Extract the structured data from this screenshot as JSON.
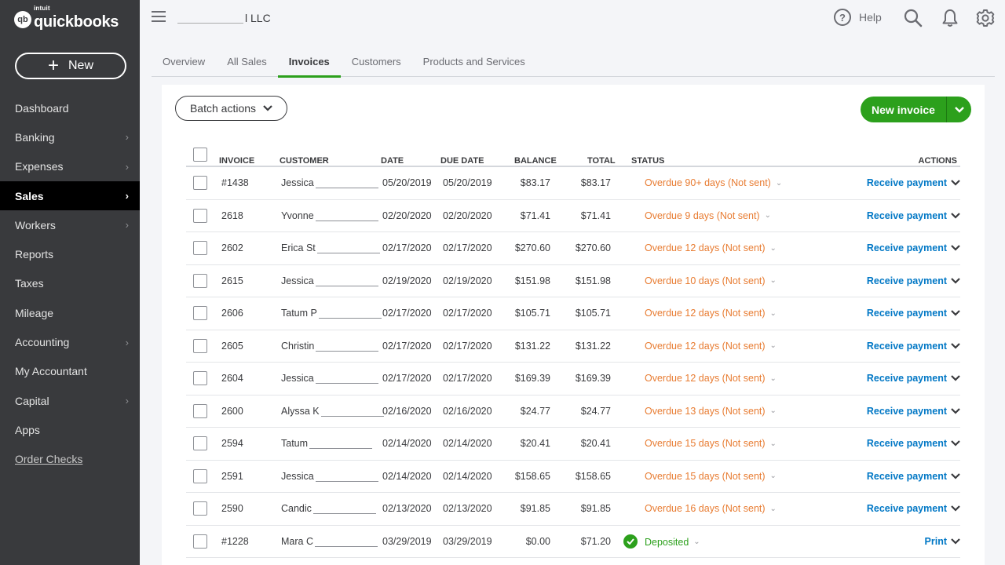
{
  "brand": {
    "intuit": "intuit",
    "name": "quickbooks",
    "mark": "qb"
  },
  "sidebar": {
    "new_label": "New",
    "items": [
      {
        "label": "Dashboard",
        "chevron": false
      },
      {
        "label": "Banking",
        "chevron": true
      },
      {
        "label": "Expenses",
        "chevron": true
      },
      {
        "label": "Sales",
        "chevron": true,
        "active": true
      },
      {
        "label": "Workers",
        "chevron": true
      },
      {
        "label": "Reports",
        "chevron": false
      },
      {
        "label": "Taxes",
        "chevron": false
      },
      {
        "label": "Mileage",
        "chevron": false
      },
      {
        "label": "Accounting",
        "chevron": true
      },
      {
        "label": "My Accountant",
        "chevron": false
      },
      {
        "label": "Capital",
        "chevron": true
      },
      {
        "label": "Apps",
        "chevron": false
      },
      {
        "label": "Order Checks",
        "chevron": false,
        "link": true
      }
    ]
  },
  "header": {
    "company_suffix": "l LLC",
    "help_label": "Help"
  },
  "tabs": [
    "Overview",
    "All Sales",
    "Invoices",
    "Customers",
    "Products and Services"
  ],
  "active_tab": "Invoices",
  "toolbar": {
    "batch_label": "Batch actions",
    "new_invoice_label": "New invoice"
  },
  "columns": {
    "invoice": "INVOICE",
    "customer": "CUSTOMER",
    "date": "DATE",
    "due_date": "DUE DATE",
    "balance": "BALANCE",
    "total": "TOTAL",
    "status": "STATUS",
    "actions": "ACTIONS"
  },
  "rows": [
    {
      "invoice": "#1438",
      "customer": "Jessica",
      "date": "05/20/2019",
      "due": "05/20/2019",
      "balance": "$83.17",
      "total": "$83.17",
      "status": "Overdue 90+ days (Not sent)",
      "action": "Receive payment",
      "deposited": false
    },
    {
      "invoice": "2618",
      "customer": "Yvonne",
      "date": "02/20/2020",
      "due": "02/20/2020",
      "balance": "$71.41",
      "total": "$71.41",
      "status": "Overdue 9 days (Not sent)",
      "action": "Receive payment",
      "deposited": false
    },
    {
      "invoice": "2602",
      "customer": "Erica St",
      "date": "02/17/2020",
      "due": "02/17/2020",
      "balance": "$270.60",
      "total": "$270.60",
      "status": "Overdue 12 days (Not sent)",
      "action": "Receive payment",
      "deposited": false
    },
    {
      "invoice": "2615",
      "customer": "Jessica",
      "date": "02/19/2020",
      "due": "02/19/2020",
      "balance": "$151.98",
      "total": "$151.98",
      "status": "Overdue 10 days (Not sent)",
      "action": "Receive payment",
      "deposited": false
    },
    {
      "invoice": "2606",
      "customer": "Tatum P",
      "date": "02/17/2020",
      "due": "02/17/2020",
      "balance": "$105.71",
      "total": "$105.71",
      "status": "Overdue 12 days (Not sent)",
      "action": "Receive payment",
      "deposited": false
    },
    {
      "invoice": "2605",
      "customer": "Christin",
      "date": "02/17/2020",
      "due": "02/17/2020",
      "balance": "$131.22",
      "total": "$131.22",
      "status": "Overdue 12 days (Not sent)",
      "action": "Receive payment",
      "deposited": false
    },
    {
      "invoice": "2604",
      "customer": "Jessica",
      "date": "02/17/2020",
      "due": "02/17/2020",
      "balance": "$169.39",
      "total": "$169.39",
      "status": "Overdue 12 days (Not sent)",
      "action": "Receive payment",
      "deposited": false
    },
    {
      "invoice": "2600",
      "customer": "Alyssa K",
      "date": "02/16/2020",
      "due": "02/16/2020",
      "balance": "$24.77",
      "total": "$24.77",
      "status": "Overdue 13 days (Not sent)",
      "action": "Receive payment",
      "deposited": false
    },
    {
      "invoice": "2594",
      "customer": "Tatum",
      "date": "02/14/2020",
      "due": "02/14/2020",
      "balance": "$20.41",
      "total": "$20.41",
      "status": "Overdue 15 days (Not sent)",
      "action": "Receive payment",
      "deposited": false
    },
    {
      "invoice": "2591",
      "customer": "Jessica",
      "date": "02/14/2020",
      "due": "02/14/2020",
      "balance": "$158.65",
      "total": "$158.65",
      "status": "Overdue 15 days (Not sent)",
      "action": "Receive payment",
      "deposited": false
    },
    {
      "invoice": "2590",
      "customer": "Candic",
      "date": "02/13/2020",
      "due": "02/13/2020",
      "balance": "$91.85",
      "total": "$91.85",
      "status": "Overdue 16 days (Not sent)",
      "action": "Receive payment",
      "deposited": false
    },
    {
      "invoice": "#1228",
      "customer": "Mara C",
      "date": "03/29/2019",
      "due": "03/29/2019",
      "balance": "$0.00",
      "total": "$71.20",
      "status": "Deposited",
      "action": "Print",
      "deposited": true
    }
  ],
  "colors": {
    "accent": "#2ca01c",
    "sidebar": "#393a3d",
    "overdue": "#e87c32",
    "link": "#0077c5"
  }
}
